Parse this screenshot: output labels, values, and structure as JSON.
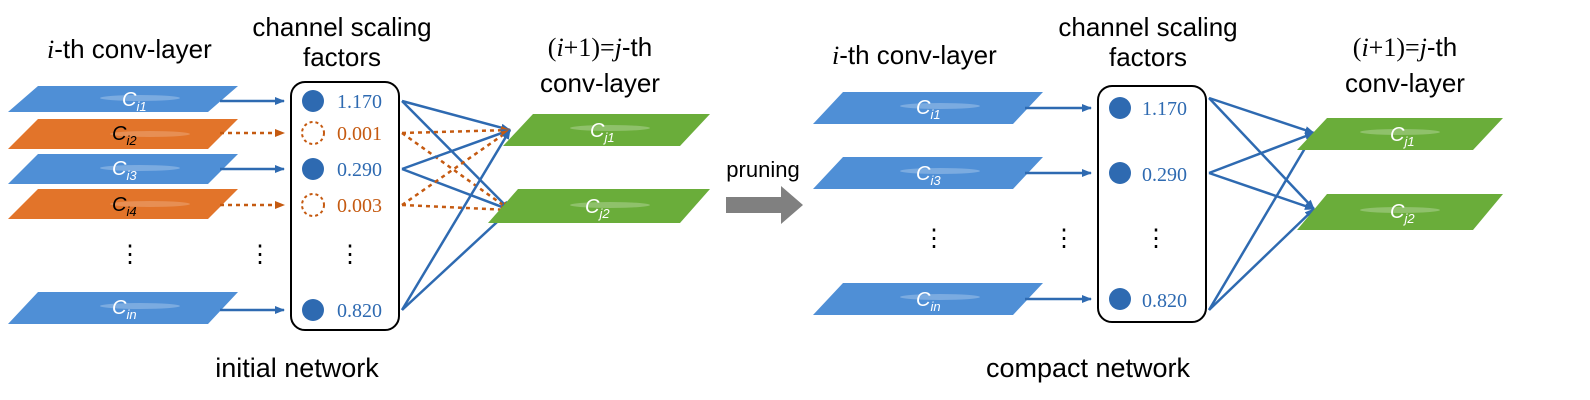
{
  "colors": {
    "blue_layer": "#4f8fd6",
    "orange_layer": "#e2742a",
    "green_layer": "#6aad3a",
    "arrow_blue": "#2e6ab1",
    "arrow_orange": "#c55a11",
    "pruning_arrow": "#808080"
  },
  "labels": {
    "i_conv_prefix": "i",
    "i_conv_suffix": "-th conv-layer",
    "scaling_line1": "channel scaling",
    "scaling_line2": "factors",
    "j_conv_line1_a": "(",
    "j_conv_line1_i": "i",
    "j_conv_line1_b": "+1)=",
    "j_conv_line1_j": "j",
    "j_conv_line1_c": "-th",
    "j_conv_line2": "conv-layer",
    "pruning": "pruning",
    "vdots": "⋮"
  },
  "initial": {
    "caption": "initial network",
    "input_channels": [
      {
        "label_c": "C",
        "label_sub": "i1",
        "pruned": false
      },
      {
        "label_c": "C",
        "label_sub": "i2",
        "pruned": true
      },
      {
        "label_c": "C",
        "label_sub": "i3",
        "pruned": false
      },
      {
        "label_c": "C",
        "label_sub": "i4",
        "pruned": true
      },
      {
        "label_c": "C",
        "label_sub": "in",
        "pruned": false
      }
    ],
    "factors": [
      "1.170",
      "0.001",
      "0.290",
      "0.003",
      "0.820"
    ],
    "output_channels": [
      {
        "label_c": "C",
        "label_sub": "j1"
      },
      {
        "label_c": "C",
        "label_sub": "j2"
      }
    ]
  },
  "compact": {
    "caption": "compact network",
    "input_channels": [
      {
        "label_c": "C",
        "label_sub": "i1"
      },
      {
        "label_c": "C",
        "label_sub": "i3"
      },
      {
        "label_c": "C",
        "label_sub": "in"
      }
    ],
    "factors": [
      "1.170",
      "0.290",
      "0.820"
    ],
    "output_channels": [
      {
        "label_c": "C",
        "label_sub": "j1"
      },
      {
        "label_c": "C",
        "label_sub": "j2"
      }
    ]
  }
}
